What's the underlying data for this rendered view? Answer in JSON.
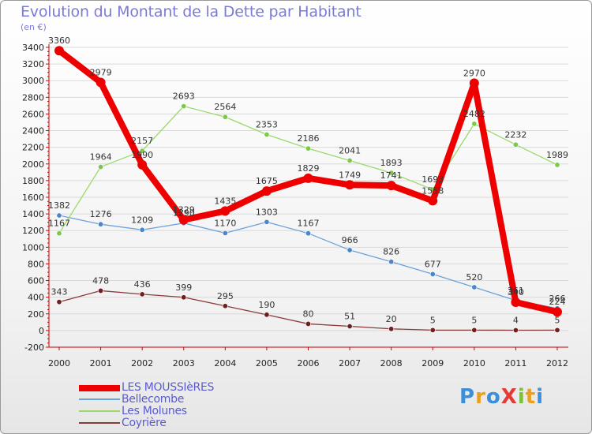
{
  "title": "Evolution du Montant de la Dette par Habitant",
  "subtitle": "(en €)",
  "logo": "ProXiti",
  "colors": {
    "title": "#7b7bd6",
    "axis": "#cc0000",
    "grid": "#d9d9d9",
    "tick_text": "#222222",
    "label_text": "#333333"
  },
  "chart_data": {
    "type": "line",
    "x": [
      "2000",
      "2001",
      "2002",
      "2003",
      "2004",
      "2005",
      "2006",
      "2007",
      "2008",
      "2009",
      "2010",
      "2011",
      "2012"
    ],
    "ylim": [
      -200,
      3400
    ],
    "yticks": [
      -200,
      0,
      200,
      400,
      600,
      800,
      1000,
      1200,
      1400,
      1600,
      1800,
      2000,
      2200,
      2400,
      2600,
      2800,
      3000,
      3200,
      3400
    ],
    "grid": true,
    "legend_position": "bottom-left",
    "series": [
      {
        "name": "LES MOUSSIèRES",
        "color": "#ee0000",
        "marker": "#ee0000",
        "width": 8,
        "values": [
          3360,
          2979,
          1990,
          1329,
          1435,
          1675,
          1829,
          1749,
          1741,
          1558,
          2970,
          340,
          224
        ],
        "labels": [
          "3360",
          "2979",
          "1990",
          "1329",
          "1435",
          "1675",
          "1829",
          "1749",
          "1741",
          "1558",
          "2970",
          "340",
          "224"
        ]
      },
      {
        "name": "Bellecombe",
        "color": "#6aa2d8",
        "marker": "#4a86c8",
        "width": 1.3,
        "values": [
          1382,
          1276,
          1209,
          1290,
          1170,
          1303,
          1167,
          966,
          826,
          677,
          520,
          361,
          266
        ],
        "labels": [
          "1382",
          "1276",
          "1209",
          "1290",
          "1170",
          "1303",
          "1167",
          "966",
          "826",
          "677",
          "520",
          "361",
          "266"
        ]
      },
      {
        "name": "Les Molunes",
        "color": "#9ad96a",
        "marker": "#7cc94a",
        "width": 1.3,
        "values": [
          1167,
          1964,
          2157,
          2693,
          2564,
          2353,
          2186,
          2041,
          1893,
          1693,
          2482,
          2232,
          1989
        ],
        "labels": [
          "1167",
          "1964",
          "2157",
          "2693",
          "2564",
          "2353",
          "2186",
          "2041",
          "1893",
          "1693",
          "2482",
          "2232",
          "1989"
        ]
      },
      {
        "name": "Coyrière",
        "color": "#8b3a3a",
        "marker": "#6e1f1f",
        "width": 1.3,
        "values": [
          343,
          478,
          436,
          399,
          295,
          190,
          80,
          51,
          20,
          5,
          5,
          4,
          5
        ],
        "labels": [
          "343",
          "478",
          "436",
          "399",
          "295",
          "190",
          "80",
          "51",
          "20",
          "5",
          "5",
          "4",
          "5"
        ]
      }
    ]
  }
}
